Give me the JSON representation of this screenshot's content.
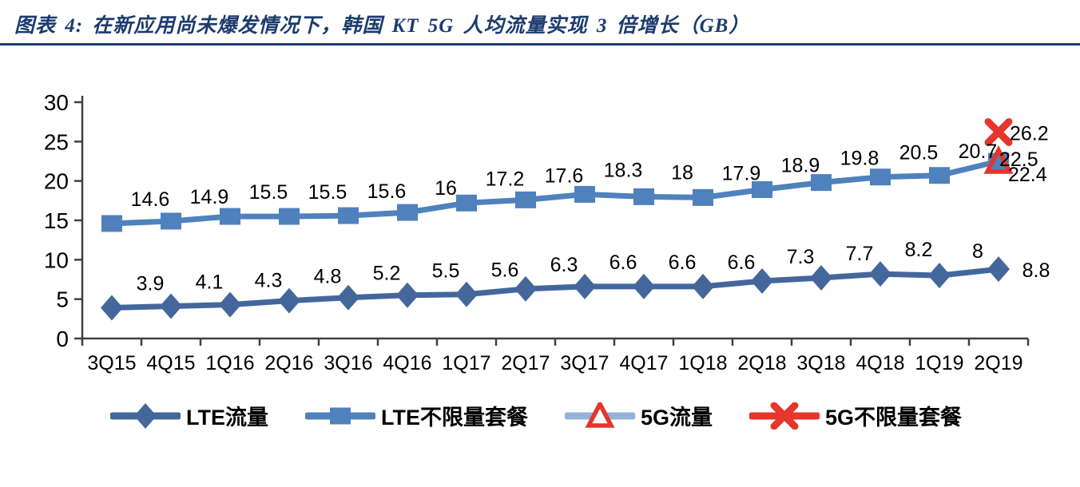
{
  "figure": {
    "title": "图表 4: 在新应用尚未爆发情况下，韩国 KT 5G 人均流量实现 3 倍增长（GB）",
    "accent_color": "#1c3b6e"
  },
  "chart_data": {
    "type": "line",
    "title": "韩国KT 5G人均流量实现3倍增长",
    "unit": "GB",
    "x": [
      "3Q15",
      "4Q15",
      "1Q16",
      "2Q16",
      "3Q16",
      "4Q16",
      "1Q17",
      "2Q17",
      "3Q17",
      "4Q17",
      "1Q18",
      "2Q18",
      "3Q18",
      "4Q18",
      "1Q19",
      "2Q19"
    ],
    "series": [
      {
        "name": "LTE流量",
        "marker": "diamond",
        "color": "#44679b",
        "values": [
          3.9,
          4.1,
          4.3,
          4.8,
          5.2,
          5.5,
          5.6,
          6.3,
          6.6,
          6.6,
          6.6,
          7.3,
          7.7,
          8.2,
          8,
          8.8
        ]
      },
      {
        "name": "LTE不限量套餐",
        "marker": "square",
        "color": "#4f81bd",
        "values": [
          14.6,
          14.9,
          15.5,
          15.5,
          15.6,
          16,
          17.2,
          17.6,
          18.3,
          18,
          17.9,
          18.9,
          19.8,
          20.5,
          20.7,
          22.5
        ]
      },
      {
        "name": "5G流量",
        "marker": "triangle-open",
        "color": "#95b3d7",
        "marker_color": "#e6352b",
        "values": [
          null,
          null,
          null,
          null,
          null,
          null,
          null,
          null,
          null,
          null,
          null,
          null,
          null,
          null,
          null,
          22.4
        ]
      },
      {
        "name": "5G不限量套餐",
        "marker": "x",
        "color": "#e6352b",
        "marker_color": "#e6352b",
        "values": [
          null,
          null,
          null,
          null,
          null,
          null,
          null,
          null,
          null,
          null,
          null,
          null,
          null,
          null,
          null,
          26.2
        ]
      }
    ],
    "ylim": [
      0,
      30
    ],
    "yticks": [
      0,
      5,
      10,
      15,
      20,
      25,
      30
    ],
    "xlabel": "",
    "ylabel": "",
    "grid": false,
    "legend_position": "bottom",
    "axis_color": "#404040",
    "label_color": "#000000"
  }
}
